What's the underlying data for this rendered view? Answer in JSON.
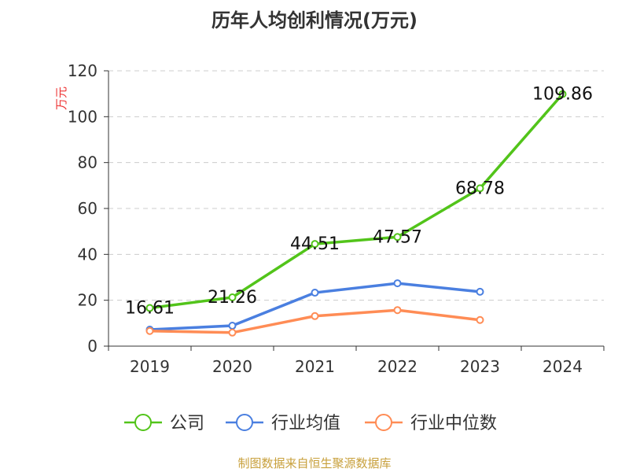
{
  "chart_data": {
    "type": "line",
    "title": "历年人均创利情况(万元)",
    "ylabel": "万元",
    "categories": [
      "2019",
      "2020",
      "2021",
      "2022",
      "2023",
      "2024"
    ],
    "ylim": [
      0,
      120
    ],
    "yticks": [
      0,
      20,
      40,
      60,
      80,
      100,
      120
    ],
    "grid": true,
    "legend_position": "bottom",
    "series": [
      {
        "name": "公司",
        "color": "#52c41a",
        "values": [
          16.61,
          21.26,
          44.51,
          47.57,
          68.78,
          109.86
        ],
        "labels": [
          "16.61",
          "21.26",
          "44.51",
          "47.57",
          "68.78",
          "109.86"
        ]
      },
      {
        "name": "行业均值",
        "color": "#4a7fe0",
        "values": [
          7.2,
          8.9,
          23.3,
          27.4,
          23.7,
          null
        ]
      },
      {
        "name": "行业中位数",
        "color": "#ff8c55",
        "values": [
          6.6,
          5.9,
          13.1,
          15.7,
          11.4,
          null
        ]
      }
    ]
  },
  "footer": "制图数据来自恒生聚源数据库"
}
